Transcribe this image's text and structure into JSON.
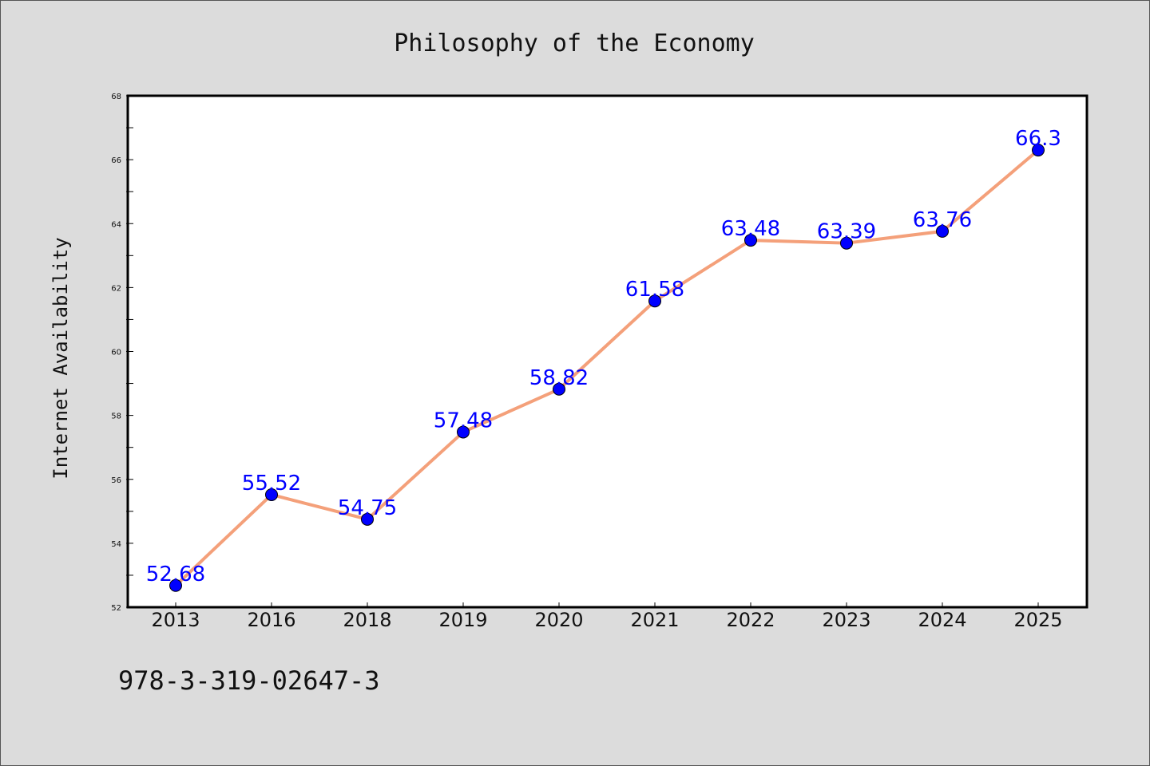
{
  "footer_text": "978-3-319-02647-3",
  "chart_data": {
    "type": "line",
    "title": "Philosophy of the Economy",
    "xlabel": "",
    "ylabel": "Internet Availability",
    "categories": [
      "2013",
      "2016",
      "2018",
      "2019",
      "2020",
      "2021",
      "2022",
      "2023",
      "2024",
      "2025"
    ],
    "values": [
      52.68,
      55.52,
      54.75,
      57.48,
      58.82,
      61.58,
      63.48,
      63.39,
      63.76,
      66.3
    ],
    "data_labels": [
      "52.68",
      "55.52",
      "54.75",
      "57.48",
      "58.82",
      "61.58",
      "63.48",
      "63.39",
      "63.76",
      "66.3"
    ],
    "ylim": [
      52,
      68
    ],
    "yticks": [
      "52",
      "54",
      "56",
      "58",
      "60",
      "62",
      "64",
      "66",
      "68"
    ],
    "grid": false,
    "legend": "none",
    "colors": {
      "line": "#f4a07a",
      "marker": "#0000ff",
      "labels": "#0000ff",
      "background": "#dcdcdc",
      "plot_area": "#ffffff"
    }
  }
}
